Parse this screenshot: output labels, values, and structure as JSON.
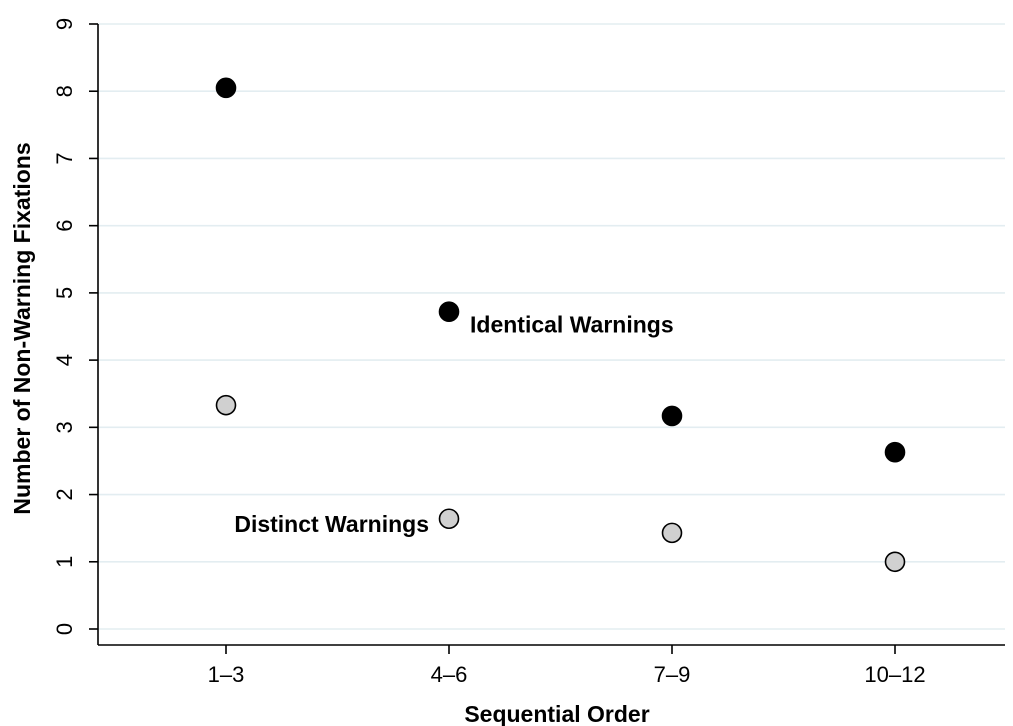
{
  "chart_data": {
    "type": "scatter",
    "title": "",
    "xlabel": "Sequential Order",
    "ylabel": "Number of Non-Warning Fixations",
    "categories": [
      "1–3",
      "4–6",
      "7–9",
      "10–12"
    ],
    "ylim": [
      0,
      9
    ],
    "yticks": [
      0,
      1,
      2,
      3,
      4,
      5,
      6,
      7,
      8,
      9
    ],
    "grid": true,
    "series": [
      {
        "name": "Identical Warnings",
        "values": [
          8.05,
          4.72,
          3.17,
          2.63
        ],
        "color": "#000000",
        "label_at": 1
      },
      {
        "name": "Distinct Warnings",
        "values": [
          3.33,
          1.64,
          1.43,
          1.0
        ],
        "color": "#d0d0d0",
        "label_at": 1
      }
    ]
  }
}
